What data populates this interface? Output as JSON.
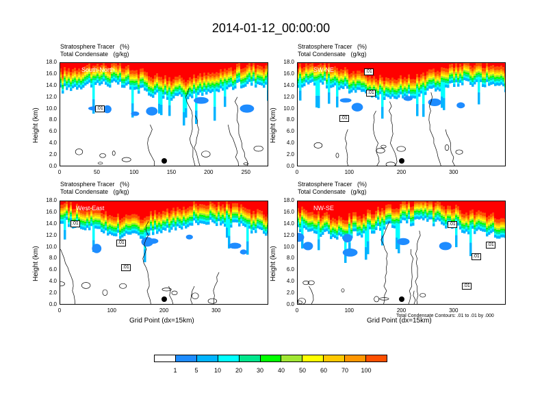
{
  "title": "2014-01-12_00:00:00",
  "chart_data": [
    {
      "type": "heatmap",
      "panel": "South-North",
      "label_line1": "Stratosphere Tracer   (%)",
      "label_line2": "Total Condensate   (g/kg)",
      "ylabel": "Height (km)",
      "xlabel": "",
      "xlim": [
        0,
        280
      ],
      "ylim": [
        0,
        18
      ],
      "yticks": [
        "0.0",
        "2.0",
        "4.0",
        "6.0",
        "8.0",
        "10.0",
        "12.0",
        "14.0",
        "16.0",
        "18.0"
      ],
      "xticks": [
        "0",
        "50",
        "100",
        "150",
        "200",
        "250"
      ],
      "contour_labels": [
        ".01"
      ],
      "marker_x": 140
    },
    {
      "type": "heatmap",
      "panel": "SW-NE",
      "label_line1": "Stratosphere Tracer   (%)",
      "label_line2": "Total Condensate   (g/kg)",
      "ylabel": "Height (km)",
      "xlabel": "",
      "xlim": [
        0,
        400
      ],
      "ylim": [
        0,
        18
      ],
      "yticks": [
        "0.0",
        "2.0",
        "4.0",
        "6.0",
        "8.0",
        "10.0",
        "12.0",
        "14.0",
        "16.0",
        "18.0"
      ],
      "xticks": [
        "0",
        "100",
        "200",
        "300"
      ],
      "contour_labels": [
        ".01",
        ".01",
        ".01"
      ],
      "marker_x": 200
    },
    {
      "type": "heatmap",
      "panel": "West-East",
      "label_line1": "Stratosphere Tracer   (%)",
      "label_line2": "Total Condensate   (g/kg)",
      "ylabel": "Height (km)",
      "xlabel": "Grid Point (dx=15km)",
      "xlim": [
        0,
        400
      ],
      "ylim": [
        0,
        18
      ],
      "yticks": [
        "0.0",
        "2.0",
        "4.0",
        "6.0",
        "8.0",
        "10.0",
        "12.0",
        "14.0",
        "16.0",
        "18.0"
      ],
      "xticks": [
        "0",
        "100",
        "200",
        "300"
      ],
      "contour_labels": [
        ".01",
        ".01",
        ".01"
      ],
      "marker_x": 200
    },
    {
      "type": "heatmap",
      "panel": "NW-SE",
      "label_line1": "Stratosphere Tracer   (%)",
      "label_line2": "Total Condensate   (g/kg)",
      "ylabel": "Height (km)",
      "xlabel": "Grid Point (dx=15km)",
      "xlim": [
        0,
        400
      ],
      "ylim": [
        0,
        18
      ],
      "yticks": [
        "0.0",
        "2.0",
        "4.0",
        "6.0",
        "8.0",
        "10.0",
        "12.0",
        "14.0",
        "16.0",
        "18.0"
      ],
      "xticks": [
        "0",
        "100",
        "200",
        "300"
      ],
      "contour_labels": [
        ".01",
        ".01",
        ".01",
        ".01"
      ],
      "marker_x": 200
    }
  ],
  "contour_note": "Total Condensate Contours: .01 to .01 by .000",
  "colorbar": {
    "levels": [
      "1",
      "5",
      "10",
      "20",
      "30",
      "40",
      "50",
      "60",
      "70",
      "100"
    ],
    "colors": [
      "#ffffff",
      "#1e8cff",
      "#00b4ff",
      "#00ffff",
      "#00e68c",
      "#00ff00",
      "#a0e632",
      "#ffff00",
      "#ffc800",
      "#ff9600",
      "#ff5000",
      "#ff0000"
    ]
  }
}
